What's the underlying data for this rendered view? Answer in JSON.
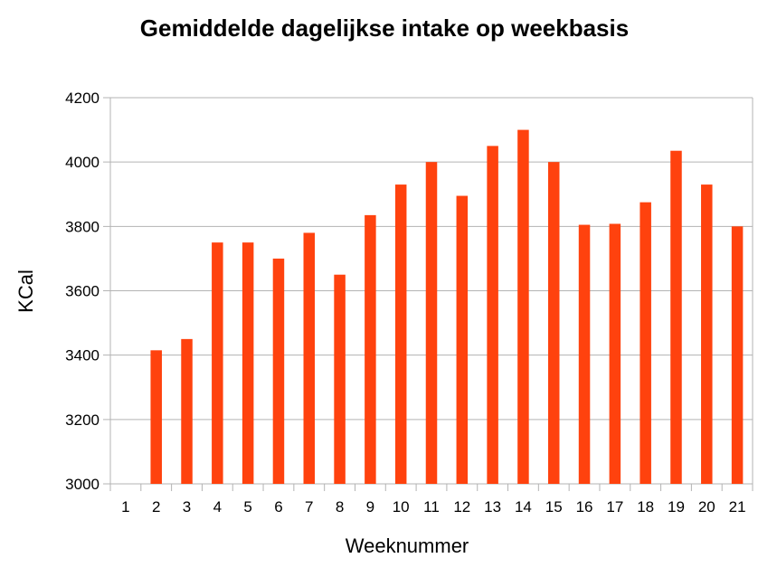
{
  "chart_data": {
    "type": "bar",
    "title": "Gemiddelde dagelijkse intake op weekbasis",
    "xlabel": "Weeknummer",
    "ylabel": "KCal",
    "categories": [
      "1",
      "2",
      "3",
      "4",
      "5",
      "6",
      "7",
      "8",
      "9",
      "10",
      "11",
      "12",
      "13",
      "14",
      "15",
      "16",
      "17",
      "18",
      "19",
      "20",
      "21"
    ],
    "values": [
      null,
      3415,
      3450,
      3750,
      3750,
      3700,
      3780,
      3650,
      3835,
      3930,
      4000,
      3895,
      4050,
      4100,
      4000,
      3805,
      3808,
      3875,
      4035,
      3930,
      3800
    ],
    "ylim": [
      3000,
      4200
    ],
    "yticks": [
      3000,
      3200,
      3400,
      3600,
      3800,
      4000,
      4200
    ],
    "grid": true,
    "legend": "none",
    "bar_color": "#ff420e"
  }
}
